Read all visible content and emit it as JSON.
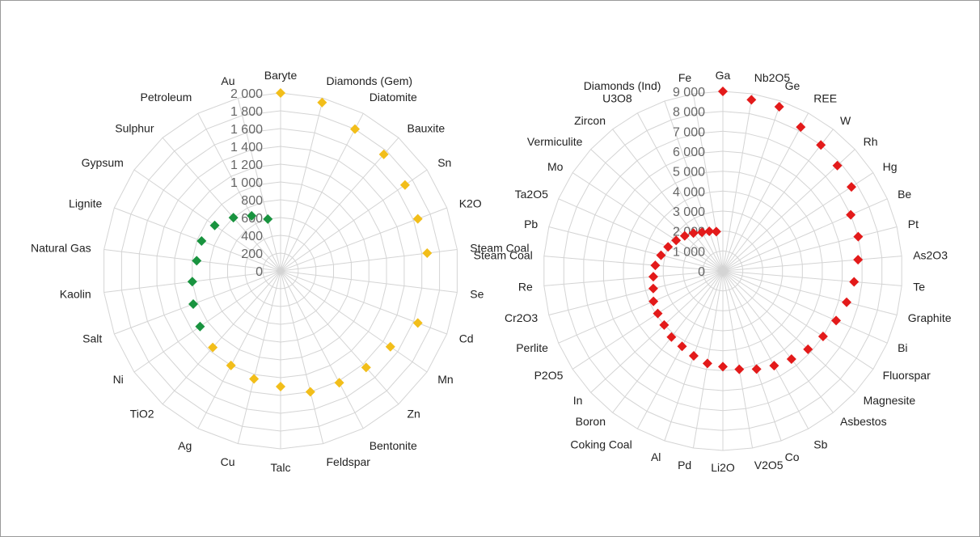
{
  "chart_data": [
    {
      "type": "radar",
      "subtype": "marker-only",
      "title": "",
      "ylim": [
        0,
        2000
      ],
      "tick_labels": [
        "0",
        "200",
        "400",
        "600",
        "800",
        "1 000",
        "1 200",
        "1 400",
        "1 600",
        "1 800",
        "2 000"
      ],
      "grid": true,
      "categories": [
        "Baryte",
        "Diamonds (Gem)",
        "Diatomite",
        "Bauxite",
        "Sn",
        "K2O",
        "Steam Coal",
        "Se",
        "Cd",
        "Mn",
        "Zn",
        "Bentonite",
        "Feldspar",
        "Talc",
        "Cu",
        "Ag",
        "TiO2",
        "Ni",
        "Salt",
        "Kaolin",
        "Natural Gas",
        "Lignite",
        "Gypsum",
        "Sulphur",
        "Petroleum",
        "Au"
      ],
      "series": [
        {
          "color": "#f2be1a",
          "values": [
            2000,
            1950,
            1800,
            1750,
            1700,
            1650,
            1660,
            null,
            1650,
            1500,
            1450,
            1420,
            1400,
            1300,
            1250,
            1200,
            1150,
            null,
            null,
            null,
            null,
            null,
            null,
            null,
            null,
            null
          ]
        },
        {
          "color": "#19933f",
          "values": [
            null,
            null,
            null,
            null,
            null,
            null,
            null,
            null,
            null,
            null,
            null,
            null,
            null,
            null,
            null,
            null,
            null,
            1100,
            1050,
            1000,
            950,
            950,
            900,
            800,
            700,
            600
          ]
        }
      ]
    },
    {
      "type": "radar",
      "subtype": "marker-only",
      "title": "",
      "ylim": [
        0,
        9000
      ],
      "tick_labels": [
        "0",
        "1 000",
        "2 000",
        "3 000",
        "4 000",
        "5 000",
        "6 000",
        "7 000",
        "8 000",
        "9 000"
      ],
      "grid": true,
      "categories": [
        "Ga",
        "Nb2O5",
        "Ge",
        "REE",
        "W",
        "Rh",
        "Hg",
        "Be",
        "Pt",
        "As2O3",
        "Te",
        "Graphite",
        "Bi",
        "Fluorspar",
        "Magnesite",
        "Asbestos",
        "Sb",
        "Co",
        "V2O5",
        "Li2O",
        "Pd",
        "Al",
        "Coking Coal",
        "Boron",
        "In",
        "P2O5",
        "Perlite",
        "Cr2O3",
        "Re",
        "Steam Coal",
        "Pb",
        "Ta2O5",
        "Mo",
        "Vermiculite",
        "Zircon",
        "U3O8",
        "Diamonds (Ind)",
        "Fe"
      ],
      "series": [
        {
          "color": "#e31a1a",
          "values": [
            9000,
            8700,
            8700,
            8200,
            8000,
            7800,
            7700,
            7000,
            7000,
            6800,
            6600,
            6400,
            6200,
            6000,
            5800,
            5600,
            5400,
            5200,
            5000,
            4800,
            4700,
            4500,
            4300,
            4200,
            4000,
            3900,
            3800,
            3600,
            3500,
            3400,
            3200,
            3000,
            2800,
            2600,
            2400,
            2200,
            2100,
            2000
          ]
        }
      ]
    }
  ]
}
